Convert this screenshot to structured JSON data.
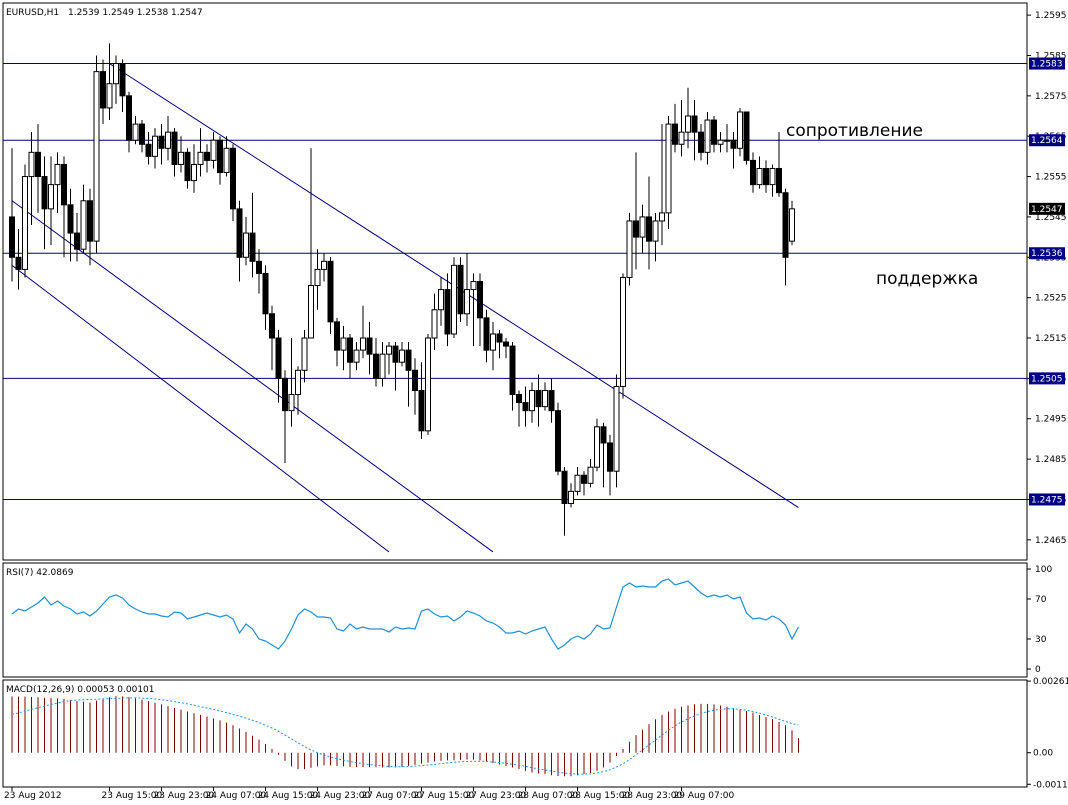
{
  "header": {
    "symbol": "EURUSD,H1",
    "ohlc": "1.2539 1.2549 1.2538 1.2547"
  },
  "colors": {
    "bg": "#ffffff",
    "level": "#000080",
    "label_bg": "#000080",
    "label_fg": "#ffffff",
    "candle": "#000000",
    "rsi": "#1e8fd6",
    "macd_hist": "#800000",
    "macd_signal": "#1e90ff",
    "grid_text": "#000000"
  },
  "annotations": {
    "resistance": "сопротивление",
    "support": "поддержка"
  },
  "chart_data": [
    {
      "type": "candlestick",
      "title": "EURUSD,H1",
      "ylim": [
        1.246,
        1.2598
      ],
      "y_ticks": [
        1.2595,
        1.2585,
        1.2575,
        1.2565,
        1.2555,
        1.2545,
        1.2535,
        1.2525,
        1.2515,
        1.2505,
        1.2495,
        1.2485,
        1.2475,
        1.2465
      ],
      "y_tick_labels": [
        "1.2595",
        "1.2585",
        "1.2575",
        "1.2565",
        "1.2555",
        "1.2545",
        "1.2535",
        "1.2525",
        "1.2515",
        "1.2505",
        "1.2495",
        "1.2485",
        "1.2475",
        "1.2465"
      ],
      "x_tick_labels": [
        "23 Aug 2012",
        "23 Aug 15:00",
        "23 Aug 23:00",
        "24 Aug 07:00",
        "24 Aug 15:00",
        "24 Aug 23:00",
        "27 Aug 07:00",
        "27 Aug 15:00",
        "27 Aug 23:00",
        "28 Aug 07:00",
        "28 Aug 15:00",
        "28 Aug 23:00",
        "29 Aug 07:00"
      ],
      "x_tick_bar_index": [
        0,
        15,
        23,
        31,
        39,
        47,
        55,
        63,
        71,
        79,
        87,
        95,
        103
      ],
      "candles": [
        [
          1.2545,
          1.2535,
          1.2562,
          1.2529
        ],
        [
          1.2535,
          1.2532,
          1.2542,
          1.2527
        ],
        [
          1.2532,
          1.2555,
          1.2558,
          1.253
        ],
        [
          1.2555,
          1.2561,
          1.2566,
          1.2543
        ],
        [
          1.2561,
          1.2555,
          1.2568,
          1.2546
        ],
        [
          1.2555,
          1.2547,
          1.256,
          1.2537
        ],
        [
          1.2547,
          1.2553,
          1.256,
          1.2538
        ],
        [
          1.2553,
          1.2558,
          1.2561,
          1.2546
        ],
        [
          1.2558,
          1.2548,
          1.256,
          1.2535
        ],
        [
          1.2548,
          1.2541,
          1.2552,
          1.2534
        ],
        [
          1.2541,
          1.2537,
          1.2546,
          1.2534
        ],
        [
          1.2537,
          1.2549,
          1.2553,
          1.2536
        ],
        [
          1.2549,
          1.2539,
          1.2552,
          1.2533
        ],
        [
          1.2539,
          1.2581,
          1.2585,
          1.2536
        ],
        [
          1.2581,
          1.2572,
          1.2584,
          1.2568
        ],
        [
          1.2572,
          1.2578,
          1.2588,
          1.2569
        ],
        [
          1.2578,
          1.2583,
          1.2585,
          1.2573
        ],
        [
          1.2583,
          1.2575,
          1.2584,
          1.2571
        ],
        [
          1.2575,
          1.2564,
          1.2576,
          1.2561
        ],
        [
          1.2564,
          1.2568,
          1.257,
          1.2563
        ],
        [
          1.2568,
          1.2563,
          1.2569,
          1.2561
        ],
        [
          1.2563,
          1.256,
          1.2566,
          1.2558
        ],
        [
          1.256,
          1.2565,
          1.2567,
          1.2557
        ],
        [
          1.2565,
          1.2562,
          1.2568,
          1.2558
        ],
        [
          1.2562,
          1.2566,
          1.257,
          1.2559
        ],
        [
          1.2566,
          1.2558,
          1.2567,
          1.2555
        ],
        [
          1.2558,
          1.2561,
          1.2565,
          1.2556
        ],
        [
          1.2561,
          1.2554,
          1.2562,
          1.2552
        ],
        [
          1.2554,
          1.2558,
          1.2563,
          1.2551
        ],
        [
          1.2558,
          1.2561,
          1.2567,
          1.2555
        ],
        [
          1.2561,
          1.2559,
          1.2563,
          1.2556
        ],
        [
          1.2559,
          1.2564,
          1.2566,
          1.2557
        ],
        [
          1.2564,
          1.2556,
          1.2565,
          1.2553
        ],
        [
          1.2556,
          1.2562,
          1.2565,
          1.2555
        ],
        [
          1.2562,
          1.2547,
          1.2563,
          1.2544
        ],
        [
          1.2547,
          1.2535,
          1.2549,
          1.2529
        ],
        [
          1.2535,
          1.2541,
          1.2545,
          1.2533
        ],
        [
          1.2541,
          1.2534,
          1.2551,
          1.253
        ],
        [
          1.2534,
          1.2531,
          1.2537,
          1.2526
        ],
        [
          1.2531,
          1.2521,
          1.2533,
          1.2517
        ],
        [
          1.2521,
          1.2515,
          1.2523,
          1.2507
        ],
        [
          1.2515,
          1.2505,
          1.2517,
          1.2499
        ],
        [
          1.2505,
          1.2497,
          1.2507,
          1.2484
        ],
        [
          1.2497,
          1.2501,
          1.2515,
          1.2493
        ],
        [
          1.2501,
          1.2507,
          1.2508,
          1.2496
        ],
        [
          1.2507,
          1.2515,
          1.2517,
          1.2504
        ],
        [
          1.2515,
          1.2528,
          1.2562,
          1.2517
        ],
        [
          1.2528,
          1.2532,
          1.2537,
          1.2522
        ],
        [
          1.2532,
          1.2534,
          1.2536,
          1.2529
        ],
        [
          1.2534,
          1.2519,
          1.2535,
          1.2516
        ],
        [
          1.2519,
          1.2512,
          1.252,
          1.2508
        ],
        [
          1.2512,
          1.2515,
          1.2518,
          1.2507
        ],
        [
          1.2515,
          1.2509,
          1.2516,
          1.2505
        ],
        [
          1.2509,
          1.2512,
          1.2514,
          1.2507
        ],
        [
          1.2512,
          1.2515,
          1.2523,
          1.251
        ],
        [
          1.2515,
          1.2511,
          1.2519,
          1.2506
        ],
        [
          1.2511,
          1.2505,
          1.2515,
          1.2503
        ],
        [
          1.2505,
          1.2511,
          1.2514,
          1.2503
        ],
        [
          1.2511,
          1.2513,
          1.2514,
          1.2506
        ],
        [
          1.2513,
          1.2509,
          1.2514,
          1.2502
        ],
        [
          1.2509,
          1.2512,
          1.2514,
          1.2508
        ],
        [
          1.2512,
          1.2507,
          1.2514,
          1.2498
        ],
        [
          1.2507,
          1.2502,
          1.251,
          1.2496
        ],
        [
          1.2502,
          1.2492,
          1.2509,
          1.249
        ],
        [
          1.2492,
          1.2515,
          1.2516,
          1.2491
        ],
        [
          1.2515,
          1.2522,
          1.2526,
          1.2512
        ],
        [
          1.2522,
          1.2527,
          1.253,
          1.2518
        ],
        [
          1.2527,
          1.2516,
          1.2531,
          1.2513
        ],
        [
          1.2516,
          1.2533,
          1.2535,
          1.2515
        ],
        [
          1.2533,
          1.2521,
          1.2535,
          1.2519
        ],
        [
          1.2521,
          1.2527,
          1.2536,
          1.2518
        ],
        [
          1.2527,
          1.2529,
          1.2531,
          1.2513
        ],
        [
          1.2529,
          1.252,
          1.2531,
          1.2513
        ],
        [
          1.252,
          1.2512,
          1.2522,
          1.2509
        ],
        [
          1.2512,
          1.2516,
          1.2519,
          1.2507
        ],
        [
          1.2516,
          1.2514,
          1.2517,
          1.251
        ],
        [
          1.2514,
          1.2513,
          1.2515,
          1.251
        ],
        [
          1.2513,
          1.2501,
          1.2514,
          1.2497
        ],
        [
          1.2501,
          1.2499,
          1.2502,
          1.2493
        ],
        [
          1.2499,
          1.2497,
          1.2503,
          1.2493
        ],
        [
          1.2497,
          1.2502,
          1.2504,
          1.2494
        ],
        [
          1.2502,
          1.2498,
          1.2506,
          1.2493
        ],
        [
          1.2498,
          1.2502,
          1.2504,
          1.2497
        ],
        [
          1.2502,
          1.2497,
          1.2505,
          1.2494
        ],
        [
          1.2497,
          1.2482,
          1.2499,
          1.2481
        ],
        [
          1.2482,
          1.2474,
          1.2483,
          1.2466
        ],
        [
          1.2474,
          1.2477,
          1.2479,
          1.2473
        ],
        [
          1.2477,
          1.2481,
          1.2483,
          1.2476
        ],
        [
          1.2481,
          1.2479,
          1.2482,
          1.2476
        ],
        [
          1.2479,
          1.2483,
          1.2485,
          1.2478
        ],
        [
          1.2483,
          1.2493,
          1.2495,
          1.2482
        ],
        [
          1.2493,
          1.2489,
          1.2494,
          1.2478
        ],
        [
          1.2489,
          1.2482,
          1.2491,
          1.2476
        ],
        [
          1.2482,
          1.2503,
          1.2506,
          1.2478
        ],
        [
          1.2503,
          1.253,
          1.2531,
          1.25
        ],
        [
          1.253,
          1.2544,
          1.2546,
          1.2528
        ],
        [
          1.2544,
          1.254,
          1.2561,
          1.2532
        ],
        [
          1.254,
          1.2545,
          1.2548,
          1.2536
        ],
        [
          1.2545,
          1.2539,
          1.2555,
          1.2532
        ],
        [
          1.2539,
          1.2544,
          1.2546,
          1.2534
        ],
        [
          1.2544,
          1.2546,
          1.2568,
          1.2538
        ],
        [
          1.2546,
          1.2568,
          1.257,
          1.2542
        ],
        [
          1.2568,
          1.2563,
          1.2573,
          1.2561
        ],
        [
          1.2563,
          1.2566,
          1.2574,
          1.256
        ],
        [
          1.2566,
          1.257,
          1.2577,
          1.2562
        ],
        [
          1.257,
          1.2566,
          1.2574,
          1.2559
        ],
        [
          1.2566,
          1.2561,
          1.2568,
          1.2559
        ],
        [
          1.2561,
          1.2569,
          1.2571,
          1.2558
        ],
        [
          1.2569,
          1.2563,
          1.257,
          1.2561
        ],
        [
          1.2563,
          1.2564,
          1.2566,
          1.2561
        ],
        [
          1.2564,
          1.2564,
          1.2568,
          1.2561
        ],
        [
          1.2564,
          1.2562,
          1.2566,
          1.2557
        ],
        [
          1.2562,
          1.2571,
          1.2572,
          1.256
        ],
        [
          1.2571,
          1.2559,
          1.2571,
          1.2558
        ],
        [
          1.2559,
          1.2553,
          1.2561,
          1.2551
        ],
        [
          1.2553,
          1.2557,
          1.256,
          1.2552
        ],
        [
          1.2557,
          1.2553,
          1.2559,
          1.2551
        ],
        [
          1.2553,
          1.2557,
          1.2558,
          1.255
        ],
        [
          1.2557,
          1.2551,
          1.2566,
          1.255
        ],
        [
          1.2551,
          1.2535,
          1.2552,
          1.2528
        ],
        [
          1.2539,
          1.2547,
          1.2549,
          1.2538
        ]
      ],
      "price_lines": [
        1.2583,
        1.2564,
        1.2536,
        1.2505,
        1.2475
      ],
      "price_labels": [
        "1.2583",
        "1.2564",
        "1.2536",
        "1.2505",
        "1.2475"
      ],
      "current_price": "1.2547",
      "trendlines": [
        {
          "x1_bar": 15,
          "y1": 1.2583,
          "x2_bar": 121,
          "y2": 1.2473
        },
        {
          "x1_bar": 0,
          "y1": 1.2549,
          "x2_bar": 74,
          "y2": 1.2462
        },
        {
          "x1_bar": 0,
          "y1": 1.2533,
          "x2_bar": 58,
          "y2": 1.2462
        }
      ]
    },
    {
      "type": "line",
      "title": "RSI(7) 42.0869",
      "ylim": [
        0,
        100
      ],
      "y_ticks": [
        100,
        70,
        30,
        0
      ],
      "y_tick_labels": [
        "100",
        "70",
        "30",
        "0"
      ],
      "values": [
        55,
        60,
        58,
        62,
        66,
        72,
        64,
        68,
        63,
        60,
        55,
        57,
        53,
        58,
        65,
        72,
        74,
        71,
        64,
        60,
        57,
        55,
        55,
        53,
        52,
        57,
        56,
        50,
        52,
        54,
        56,
        54,
        52,
        54,
        50,
        36,
        45,
        40,
        30,
        28,
        24,
        20,
        28,
        40,
        54,
        60,
        57,
        52,
        52,
        51,
        40,
        38,
        45,
        40,
        42,
        40,
        40,
        40,
        37,
        42,
        40,
        41,
        40,
        58,
        60,
        55,
        52,
        53,
        48,
        52,
        58,
        56,
        53,
        48,
        46,
        42,
        36,
        36,
        38,
        35,
        38,
        40,
        42,
        30,
        20,
        24,
        30,
        33,
        30,
        35,
        44,
        40,
        41,
        62,
        82,
        86,
        82,
        83,
        82,
        82,
        88,
        90,
        84,
        86,
        88,
        82,
        76,
        72,
        74,
        72,
        74,
        70,
        72,
        56,
        50,
        51,
        49,
        53,
        50,
        44,
        30,
        42
      ]
    },
    {
      "type": "bar",
      "title": "MACD(12,26,9) 0.00053 0.00101",
      "ylim": [
        -0.00125,
        0.00265
      ],
      "y_ticks": [
        0.00261,
        0.0,
        -0.00115
      ],
      "y_tick_labels": [
        "0.00261",
        "0.00",
        "-0.00115"
      ],
      "values": [
        0.00205,
        0.00205,
        0.00205,
        0.00203,
        0.00202,
        0.002,
        0.002,
        0.00198,
        0.00196,
        0.00192,
        0.00188,
        0.00186,
        0.00183,
        0.0019,
        0.00196,
        0.00202,
        0.00206,
        0.00205,
        0.00202,
        0.00198,
        0.00194,
        0.00188,
        0.00182,
        0.00176,
        0.0017,
        0.00163,
        0.00157,
        0.0015,
        0.00144,
        0.00138,
        0.00132,
        0.00125,
        0.00118,
        0.0011,
        0.001,
        0.00088,
        0.00076,
        0.00062,
        0.00048,
        0.00032,
        0.00014,
        -8e-05,
        -0.0003,
        -0.0005,
        -0.0006,
        -0.0006,
        -0.00055,
        -0.0005,
        -0.00046,
        -0.00046,
        -0.00048,
        -0.0005,
        -0.00051,
        -0.00052,
        -0.00052,
        -0.00053,
        -0.00053,
        -0.00054,
        -0.00054,
        -0.00053,
        -0.00051,
        -0.00048,
        -0.00044,
        -0.0004,
        -0.00036,
        -0.00032,
        -0.0003,
        -0.00028,
        -0.00028,
        -0.00026,
        -0.00025,
        -0.00025,
        -0.00028,
        -0.00033,
        -0.00038,
        -0.00043,
        -0.00048,
        -0.00054,
        -0.0006,
        -0.00066,
        -0.00072,
        -0.00076,
        -0.00078,
        -0.00082,
        -0.00085,
        -0.00086,
        -0.00086,
        -0.00082,
        -0.00078,
        -0.00074,
        -0.00066,
        -0.00054,
        -0.00036,
        -0.00012,
        0.00014,
        0.0004,
        0.00064,
        0.00084,
        0.00104,
        0.00122,
        0.00138,
        0.0015,
        0.0016,
        0.00168,
        0.00172,
        0.00176,
        0.00178,
        0.00178,
        0.00176,
        0.00172,
        0.00168,
        0.00162,
        0.00158,
        0.00152,
        0.00146,
        0.00138,
        0.0013,
        0.00122,
        0.00112,
        0.001,
        0.00082,
        0.00053
      ],
      "signal": [
        0.0014,
        0.00145,
        0.00152,
        0.00158,
        0.00164,
        0.0017,
        0.00176,
        0.00181,
        0.00186,
        0.0019,
        0.00192,
        0.00193,
        0.00194,
        0.00195,
        0.00196,
        0.00197,
        0.00198,
        0.00199,
        0.002,
        0.002,
        0.00199,
        0.00198,
        0.00196,
        0.00193,
        0.0019,
        0.00186,
        0.00182,
        0.00178,
        0.00173,
        0.00168,
        0.00163,
        0.00158,
        0.00152,
        0.00146,
        0.0014,
        0.00133,
        0.00126,
        0.00118,
        0.0011,
        0.001,
        0.0009,
        0.00078,
        0.00064,
        0.0005,
        0.00036,
        0.00022,
        0.0001,
        0.0,
        -8e-05,
        -0.00016,
        -0.00022,
        -0.00027,
        -0.00032,
        -0.00036,
        -0.0004,
        -0.00043,
        -0.00046,
        -0.00048,
        -0.0005,
        -0.00051,
        -0.00051,
        -0.0005,
        -0.00049,
        -0.00047,
        -0.00045,
        -0.00043,
        -0.0004,
        -0.00037,
        -0.00035,
        -0.00033,
        -0.00032,
        -0.00031,
        -0.00031,
        -0.00032,
        -0.00034,
        -0.00036,
        -0.00039,
        -0.00042,
        -0.00046,
        -0.0005,
        -0.00055,
        -0.00059,
        -0.00063,
        -0.00067,
        -0.00071,
        -0.00074,
        -0.00077,
        -0.00078,
        -0.00078,
        -0.00077,
        -0.00074,
        -0.00069,
        -0.00062,
        -0.00052,
        -0.0004,
        -0.00025,
        -8e-05,
        0.0001,
        0.00028,
        0.00046,
        0.00064,
        0.00082,
        0.00098,
        0.00112,
        0.00124,
        0.00134,
        0.00143,
        0.0015,
        0.00155,
        0.00158,
        0.0016,
        0.0016,
        0.00158,
        0.00155,
        0.0015,
        0.00144,
        0.00137,
        0.0013,
        0.00122,
        0.00114,
        0.00106,
        0.00101
      ]
    }
  ]
}
